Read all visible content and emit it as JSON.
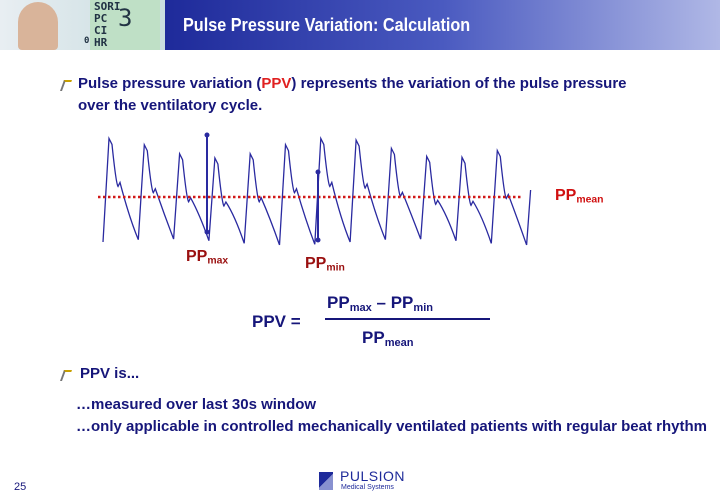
{
  "header": {
    "title": "Pulse Pressure Variation: Calculation",
    "monitor": [
      "SORI",
      "PC",
      "CI",
      "HR",
      "3",
      "0"
    ]
  },
  "bullet1": {
    "parts": [
      "Pulse pressure variation (",
      "PPV",
      ") represents the variation of the pulse pressure"
    ],
    "line2": "over the ventilatory cycle."
  },
  "diagram": {
    "pp_max": {
      "base": "PP",
      "sub": "max"
    },
    "pp_min": {
      "base": "PP",
      "sub": "min"
    },
    "pp_mean": {
      "base": "PP",
      "sub": "mean"
    }
  },
  "formula": {
    "lhs": "PPV =",
    "numerator": [
      "PP",
      "max",
      " – PP",
      "min"
    ],
    "denominator": [
      "PP",
      "mean"
    ]
  },
  "bullet2": {
    "text": "PPV is...",
    "lines": [
      "…measured over last 30s window",
      "…only applicable in controlled mechanically ventilated patients with regular beat rhythm"
    ]
  },
  "footer": {
    "page": "25",
    "logo": "PULSION",
    "logo_sub": "Medical Systems"
  }
}
